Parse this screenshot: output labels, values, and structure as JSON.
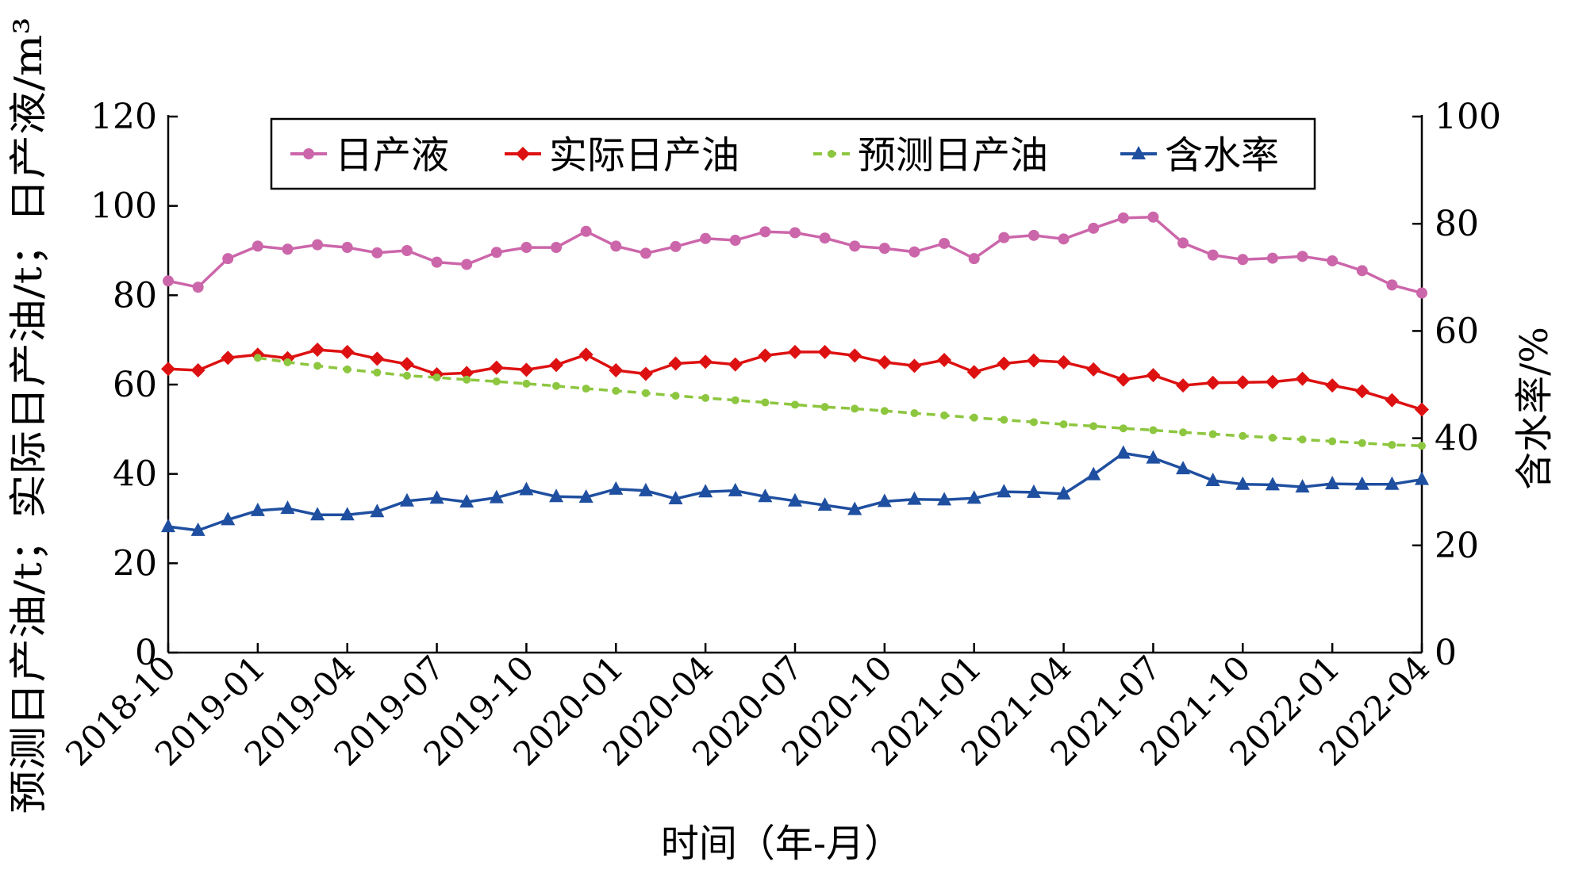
{
  "chart_data": {
    "type": "line",
    "x_ticks": [
      "2018-10",
      "2019-01",
      "2019-04",
      "2019-07",
      "2019-10",
      "2020-01",
      "2020-04",
      "2020-07",
      "2020-10",
      "2021-01",
      "2021-04",
      "2021-07",
      "2021-10",
      "2022-01",
      "2022-04"
    ],
    "x_start": "2018-10",
    "xlabel": "时间（年-月）",
    "ylabel_left": "预测日产油/t；实际日产油/t；日产液/m³",
    "ylabel_right": "含水率/%",
    "ylim_left": [
      0,
      120
    ],
    "ylim_right": [
      0,
      100
    ],
    "yticks_left": [
      0,
      20,
      40,
      60,
      80,
      100,
      120
    ],
    "yticks_right": [
      0,
      20,
      40,
      60,
      80,
      100
    ],
    "grid": false,
    "legend_position": "top",
    "series": [
      {
        "name": "日产液",
        "axis": "left",
        "color": "#cc66aa",
        "marker": "circle",
        "dash": false,
        "values": [
          83.2,
          81.8,
          88.2,
          91.0,
          90.3,
          91.3,
          90.7,
          89.5,
          90.0,
          87.4,
          86.9,
          89.6,
          90.7,
          90.7,
          94.3,
          91.0,
          89.4,
          90.9,
          92.7,
          92.3,
          94.2,
          94.0,
          92.8,
          91.0,
          90.5,
          89.7,
          91.6,
          88.2,
          92.9,
          93.4,
          92.6,
          95.0,
          97.3,
          97.5,
          91.7,
          89.0,
          88.0,
          88.3,
          88.7,
          87.7,
          85.5,
          82.3,
          80.5
        ]
      },
      {
        "name": "实际日产油",
        "axis": "left",
        "color": "#dd1111",
        "marker": "diamond",
        "dash": false,
        "values": [
          63.5,
          63.2,
          66.0,
          66.7,
          65.9,
          67.8,
          67.3,
          65.8,
          64.6,
          62.3,
          62.6,
          63.8,
          63.3,
          64.4,
          66.7,
          63.2,
          62.4,
          64.7,
          65.1,
          64.5,
          66.5,
          67.3,
          67.3,
          66.5,
          65.0,
          64.2,
          65.5,
          62.8,
          64.7,
          65.4,
          65.0,
          63.4,
          61.1,
          62.1,
          59.8,
          60.4,
          60.5,
          60.6,
          61.3,
          59.8,
          58.5,
          56.5,
          54.4
        ]
      },
      {
        "name": "预测日产油",
        "axis": "left",
        "color": "#8dc63f",
        "marker": "dot",
        "dash": true,
        "start_index": 3,
        "values": [
          66.0,
          65.0,
          64.2,
          63.4,
          62.7,
          62.0,
          61.6,
          61.1,
          60.7,
          60.2,
          59.7,
          59.1,
          58.6,
          58.1,
          57.5,
          57.0,
          56.5,
          56.0,
          55.5,
          55.0,
          54.6,
          54.1,
          53.6,
          53.1,
          52.6,
          52.1,
          51.6,
          51.1,
          50.7,
          50.2,
          49.8,
          49.3,
          48.9,
          48.5,
          48.1,
          47.7,
          47.3,
          46.9,
          46.5,
          46.3
        ]
      },
      {
        "name": "含水率",
        "axis": "right",
        "color": "#1f4fa0",
        "marker": "triangle",
        "dash": false,
        "values": [
          23.5,
          22.8,
          24.8,
          26.5,
          26.9,
          25.7,
          25.7,
          26.3,
          28.3,
          28.8,
          28.1,
          28.9,
          30.4,
          29.1,
          29.0,
          30.5,
          30.2,
          28.7,
          30.0,
          30.2,
          29.1,
          28.3,
          27.5,
          26.7,
          28.2,
          28.6,
          28.5,
          28.8,
          30.0,
          29.9,
          29.6,
          33.2,
          37.2,
          36.3,
          34.3,
          32.1,
          31.4,
          31.3,
          30.9,
          31.5,
          31.4,
          31.4,
          32.3
        ]
      }
    ]
  }
}
